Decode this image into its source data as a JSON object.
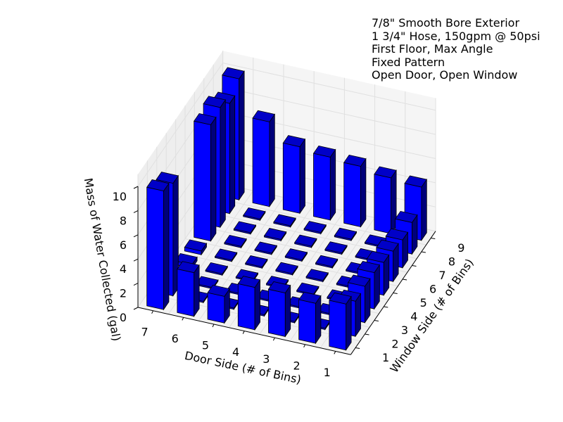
{
  "chart_data": {
    "type": "bar3d",
    "title_lines": [
      "7/8\" Smooth Bore Exterior",
      "1 3/4\" Hose, 150gpm @ 50psi",
      "First Floor, Max Angle",
      "Fixed Pattern",
      "Open Door, Open Window"
    ],
    "xlabel": "Door Side (# of Bins)",
    "ylabel": "Window Side (# of Bins)",
    "zlabel": "Mass of Water Collected (gal)",
    "x_ticks": [
      "1",
      "2",
      "3",
      "4",
      "5",
      "6",
      "7"
    ],
    "y_ticks": [
      "1",
      "2",
      "3",
      "4",
      "5",
      "6",
      "7",
      "8",
      "9"
    ],
    "z_ticks": [
      "0",
      "2",
      "4",
      "6",
      "8",
      "10"
    ],
    "zlim": [
      0,
      10
    ],
    "grid": true,
    "bar_color": "#0000ff",
    "description": "x = door-side bin (1-7), y = window-side bin (1-9), z = gallons collected",
    "bars": [
      {
        "x": 7,
        "y": 1,
        "z": 9.8
      },
      {
        "x": 7,
        "y": 2,
        "z": 9.3
      },
      {
        "x": 7,
        "y": 3,
        "z": 0.4
      },
      {
        "x": 7,
        "y": 4,
        "z": 0.3
      },
      {
        "x": 7,
        "y": 5,
        "z": 0.3
      },
      {
        "x": 7,
        "y": 6,
        "z": 9.6
      },
      {
        "x": 7,
        "y": 7,
        "z": 9.9
      },
      {
        "x": 7,
        "y": 8,
        "z": 9.1
      },
      {
        "x": 7,
        "y": 9,
        "z": 10.0
      },
      {
        "x": 6,
        "y": 1,
        "z": 3.6
      },
      {
        "x": 6,
        "y": 2,
        "z": 0.1
      },
      {
        "x": 6,
        "y": 3,
        "z": 0.1
      },
      {
        "x": 6,
        "y": 4,
        "z": 0.1
      },
      {
        "x": 6,
        "y": 5,
        "z": 0.1
      },
      {
        "x": 6,
        "y": 6,
        "z": 0.1
      },
      {
        "x": 6,
        "y": 7,
        "z": 0.1
      },
      {
        "x": 6,
        "y": 8,
        "z": 0.1
      },
      {
        "x": 6,
        "y": 9,
        "z": 7.0
      },
      {
        "x": 5,
        "y": 1,
        "z": 2.2
      },
      {
        "x": 5,
        "y": 2,
        "z": 0.1
      },
      {
        "x": 5,
        "y": 3,
        "z": 0.1
      },
      {
        "x": 5,
        "y": 4,
        "z": 0.1
      },
      {
        "x": 5,
        "y": 5,
        "z": 0.1
      },
      {
        "x": 5,
        "y": 6,
        "z": 0.1
      },
      {
        "x": 5,
        "y": 7,
        "z": 0.1
      },
      {
        "x": 5,
        "y": 8,
        "z": 0.1
      },
      {
        "x": 5,
        "y": 9,
        "z": 5.5
      },
      {
        "x": 4,
        "y": 1,
        "z": 3.5
      },
      {
        "x": 4,
        "y": 2,
        "z": 0.1
      },
      {
        "x": 4,
        "y": 3,
        "z": 0.1
      },
      {
        "x": 4,
        "y": 4,
        "z": 0.1
      },
      {
        "x": 4,
        "y": 5,
        "z": 0.1
      },
      {
        "x": 4,
        "y": 6,
        "z": 0.1
      },
      {
        "x": 4,
        "y": 7,
        "z": 0.1
      },
      {
        "x": 4,
        "y": 8,
        "z": 0.1
      },
      {
        "x": 4,
        "y": 9,
        "z": 5.2
      },
      {
        "x": 3,
        "y": 1,
        "z": 3.6
      },
      {
        "x": 3,
        "y": 2,
        "z": 0.1
      },
      {
        "x": 3,
        "y": 3,
        "z": 0.1
      },
      {
        "x": 3,
        "y": 4,
        "z": 0.1
      },
      {
        "x": 3,
        "y": 5,
        "z": 0.1
      },
      {
        "x": 3,
        "y": 6,
        "z": 0.1
      },
      {
        "x": 3,
        "y": 7,
        "z": 0.1
      },
      {
        "x": 3,
        "y": 8,
        "z": 0.1
      },
      {
        "x": 3,
        "y": 9,
        "z": 5.0
      },
      {
        "x": 2,
        "y": 1,
        "z": 3.3
      },
      {
        "x": 2,
        "y": 2,
        "z": 0.1
      },
      {
        "x": 2,
        "y": 3,
        "z": 0.1
      },
      {
        "x": 2,
        "y": 4,
        "z": 0.1
      },
      {
        "x": 2,
        "y": 5,
        "z": 0.1
      },
      {
        "x": 2,
        "y": 6,
        "z": 0.1
      },
      {
        "x": 2,
        "y": 7,
        "z": 0.1
      },
      {
        "x": 2,
        "y": 8,
        "z": 0.1
      },
      {
        "x": 2,
        "y": 9,
        "z": 4.6
      },
      {
        "x": 1,
        "y": 1,
        "z": 3.8
      },
      {
        "x": 1,
        "y": 2,
        "z": 2.9
      },
      {
        "x": 1,
        "y": 3,
        "z": 3.0
      },
      {
        "x": 1,
        "y": 4,
        "z": 3.0
      },
      {
        "x": 1,
        "y": 5,
        "z": 2.7
      },
      {
        "x": 1,
        "y": 6,
        "z": 2.5
      },
      {
        "x": 1,
        "y": 7,
        "z": 2.3
      },
      {
        "x": 1,
        "y": 8,
        "z": 2.6
      },
      {
        "x": 1,
        "y": 9,
        "z": 4.4
      }
    ]
  }
}
